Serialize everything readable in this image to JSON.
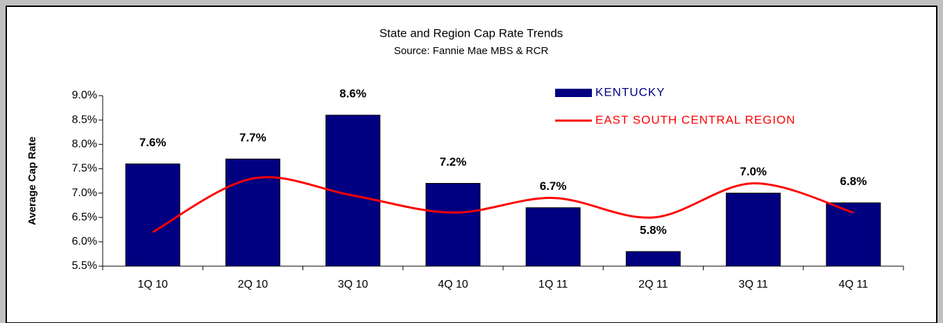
{
  "chart_data": {
    "type": "bar",
    "title": "State and Region Cap Rate Trends",
    "subtitle": "Source:  Fannie Mae MBS & RCR",
    "y_label": "Average Cap Rate",
    "categories": [
      "1Q 10",
      "2Q 10",
      "3Q 10",
      "4Q 10",
      "1Q 11",
      "2Q 11",
      "3Q 11",
      "4Q 11"
    ],
    "series": [
      {
        "name": "KENTUCKY",
        "type": "bar",
        "color": "#000080",
        "values": [
          7.6,
          7.7,
          8.6,
          7.2,
          6.7,
          5.8,
          7.0,
          6.8
        ],
        "value_labels": [
          "7.6%",
          "7.7%",
          "8.6%",
          "7.2%",
          "6.7%",
          "5.8%",
          "7.0%",
          "6.8%"
        ]
      },
      {
        "name": "EAST SOUTH CENTRAL REGION",
        "type": "line",
        "color": "#ff0000",
        "values": [
          6.2,
          7.3,
          6.95,
          6.6,
          6.9,
          6.5,
          7.2,
          6.6
        ]
      }
    ],
    "ylim": [
      5.5,
      9.0
    ],
    "yticks": [
      {
        "value": 5.5,
        "label": "5.5%"
      },
      {
        "value": 6.0,
        "label": "6.0%"
      },
      {
        "value": 6.5,
        "label": "6.5%"
      },
      {
        "value": 7.0,
        "label": "7.0%"
      },
      {
        "value": 7.5,
        "label": "7.5%"
      },
      {
        "value": 8.0,
        "label": "8.0%"
      },
      {
        "value": 8.5,
        "label": "8.5%"
      },
      {
        "value": 9.0,
        "label": "9.0%"
      }
    ],
    "legend": "top-right"
  }
}
